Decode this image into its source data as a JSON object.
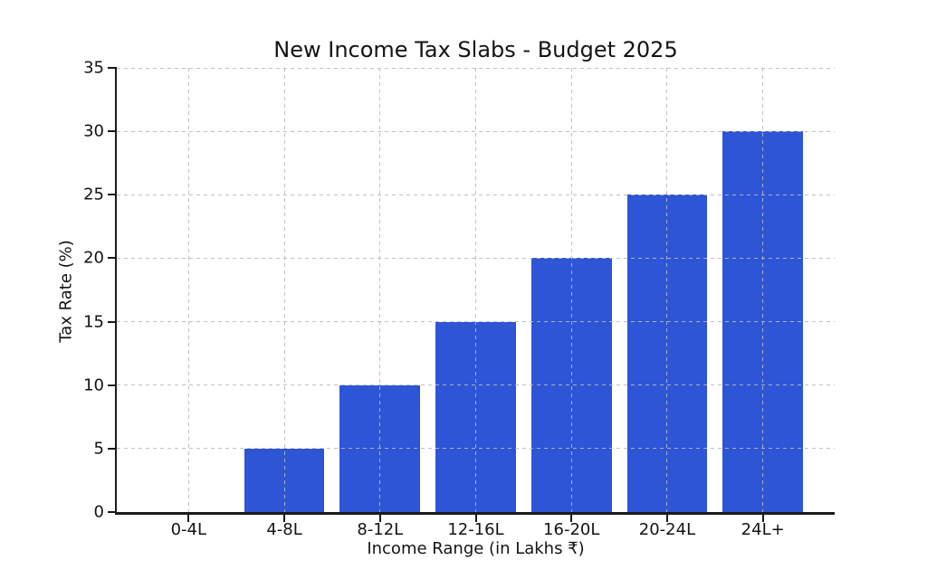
{
  "chart_data": {
    "type": "bar",
    "title": "New Income Tax Slabs - Budget 2025",
    "xlabel": "Income Range (in Lakhs ₹)",
    "ylabel": "Tax Rate (%)",
    "categories": [
      "0-4L",
      "4-8L",
      "8-12L",
      "12-16L",
      "16-20L",
      "20-24L",
      "24L+"
    ],
    "values": [
      0,
      5,
      10,
      15,
      20,
      25,
      30
    ],
    "ylim": [
      0,
      35
    ],
    "yticks": [
      0,
      5,
      10,
      15,
      20,
      25,
      30,
      35
    ],
    "bar_color": "#2d55d6",
    "grid": {
      "visible": true,
      "style": "dashed",
      "color": "#bababa",
      "over_bars": true,
      "horizontal": true,
      "vertical": true
    },
    "legend": null,
    "x_margin": 0.75,
    "bar_rel_width": 0.84
  }
}
